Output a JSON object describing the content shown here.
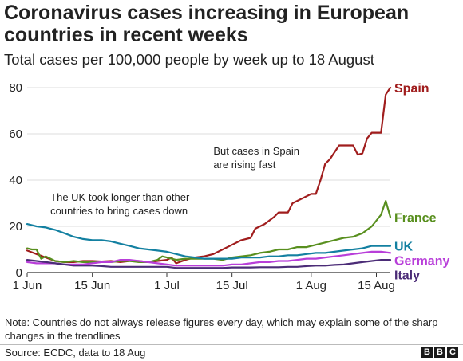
{
  "title": "Coronavirus cases increasing in European countries in recent weeks",
  "subtitle": "Total cases per 100,000 people by week up to 18 August",
  "note": "Note: Countries do not always release figures every day, which may explain some of the sharp changes in the trendlines",
  "source": "Source: ECDC, data to 18 Aug",
  "logo": [
    "B",
    "B",
    "C"
  ],
  "chart_data": {
    "type": "line",
    "x_start": "2020-06-01",
    "xlim": [
      "2020-06-01",
      "2020-08-18"
    ],
    "ylim": [
      0,
      80
    ],
    "grid": true,
    "yticks": [
      0,
      20,
      40,
      60,
      80
    ],
    "xticks": [
      {
        "date": "2020-06-01",
        "label": "1 Jun"
      },
      {
        "date": "2020-06-15",
        "label": "15 Jun"
      },
      {
        "date": "2020-07-01",
        "label": "1 Jul"
      },
      {
        "date": "2020-07-15",
        "label": "15 Jul"
      },
      {
        "date": "2020-08-01",
        "label": "1 Aug"
      },
      {
        "date": "2020-08-15",
        "label": "15 Aug"
      }
    ],
    "series": [
      {
        "name": "Spain",
        "color": "#a01d1d",
        "points": [
          [
            "2020-06-01",
            9.5
          ],
          [
            "2020-06-03",
            8.0
          ],
          [
            "2020-06-05",
            6.5
          ],
          [
            "2020-06-07",
            5.0
          ],
          [
            "2020-06-09",
            4.5
          ],
          [
            "2020-06-11",
            4.5
          ],
          [
            "2020-06-13",
            5.0
          ],
          [
            "2020-06-15",
            5.0
          ],
          [
            "2020-06-17",
            4.8
          ],
          [
            "2020-06-19",
            5.0
          ],
          [
            "2020-06-21",
            4.5
          ],
          [
            "2020-06-23",
            5.0
          ],
          [
            "2020-06-25",
            5.0
          ],
          [
            "2020-06-27",
            4.5
          ],
          [
            "2020-06-29",
            5.0
          ],
          [
            "2020-07-01",
            5.5
          ],
          [
            "2020-07-02",
            6.5
          ],
          [
            "2020-07-03",
            4.0
          ],
          [
            "2020-07-05",
            5.5
          ],
          [
            "2020-07-07",
            6.5
          ],
          [
            "2020-07-09",
            7.0
          ],
          [
            "2020-07-11",
            8.0
          ],
          [
            "2020-07-13",
            10.0
          ],
          [
            "2020-07-15",
            12.0
          ],
          [
            "2020-07-17",
            14.0
          ],
          [
            "2020-07-19",
            15.0
          ],
          [
            "2020-07-20",
            19.0
          ],
          [
            "2020-07-22",
            21.0
          ],
          [
            "2020-07-24",
            24.0
          ],
          [
            "2020-07-25",
            26.0
          ],
          [
            "2020-07-27",
            26.0
          ],
          [
            "2020-07-28",
            30.0
          ],
          [
            "2020-07-29",
            31.0
          ],
          [
            "2020-07-31",
            33.0
          ],
          [
            "2020-08-01",
            34.0
          ],
          [
            "2020-08-02",
            34.0
          ],
          [
            "2020-08-03",
            40.0
          ],
          [
            "2020-08-04",
            47.0
          ],
          [
            "2020-08-05",
            49.0
          ],
          [
            "2020-08-07",
            55.0
          ],
          [
            "2020-08-09",
            55.0
          ],
          [
            "2020-08-10",
            55.0
          ],
          [
            "2020-08-11",
            51.0
          ],
          [
            "2020-08-12",
            51.5
          ],
          [
            "2020-08-13",
            58.0
          ],
          [
            "2020-08-14",
            60.5
          ],
          [
            "2020-08-15",
            60.5
          ],
          [
            "2020-08-16",
            60.5
          ],
          [
            "2020-08-17",
            77.0
          ],
          [
            "2020-08-18",
            80.0
          ]
        ]
      },
      {
        "name": "France",
        "color": "#588f1e",
        "points": [
          [
            "2020-06-01",
            10.5
          ],
          [
            "2020-06-02",
            10.0
          ],
          [
            "2020-06-03",
            10.0
          ],
          [
            "2020-06-04",
            6.0
          ],
          [
            "2020-06-05",
            7.0
          ],
          [
            "2020-06-07",
            5.0
          ],
          [
            "2020-06-09",
            4.5
          ],
          [
            "2020-06-11",
            5.0
          ],
          [
            "2020-06-13",
            4.5
          ],
          [
            "2020-06-15",
            4.5
          ],
          [
            "2020-06-17",
            4.5
          ],
          [
            "2020-06-19",
            4.5
          ],
          [
            "2020-06-21",
            5.0
          ],
          [
            "2020-06-23",
            5.0
          ],
          [
            "2020-06-25",
            4.5
          ],
          [
            "2020-06-27",
            4.5
          ],
          [
            "2020-06-29",
            5.5
          ],
          [
            "2020-06-30",
            7.0
          ],
          [
            "2020-07-01",
            6.5
          ],
          [
            "2020-07-03",
            5.5
          ],
          [
            "2020-07-05",
            6.0
          ],
          [
            "2020-07-07",
            6.0
          ],
          [
            "2020-07-09",
            6.0
          ],
          [
            "2020-07-11",
            6.0
          ],
          [
            "2020-07-13",
            5.5
          ],
          [
            "2020-07-15",
            6.5
          ],
          [
            "2020-07-17",
            7.0
          ],
          [
            "2020-07-19",
            7.5
          ],
          [
            "2020-07-21",
            8.5
          ],
          [
            "2020-07-23",
            9.0
          ],
          [
            "2020-07-25",
            10.0
          ],
          [
            "2020-07-27",
            10.0
          ],
          [
            "2020-07-29",
            11.0
          ],
          [
            "2020-07-31",
            11.0
          ],
          [
            "2020-08-02",
            12.0
          ],
          [
            "2020-08-04",
            13.0
          ],
          [
            "2020-08-06",
            14.0
          ],
          [
            "2020-08-08",
            15.0
          ],
          [
            "2020-08-10",
            15.5
          ],
          [
            "2020-08-12",
            17.0
          ],
          [
            "2020-08-14",
            20.0
          ],
          [
            "2020-08-16",
            25.0
          ],
          [
            "2020-08-17",
            31.0
          ],
          [
            "2020-08-18",
            24.0
          ]
        ]
      },
      {
        "name": "UK",
        "color": "#1380a1",
        "points": [
          [
            "2020-06-01",
            21.0
          ],
          [
            "2020-06-03",
            20.0
          ],
          [
            "2020-06-05",
            19.5
          ],
          [
            "2020-06-07",
            18.5
          ],
          [
            "2020-06-09",
            17.0
          ],
          [
            "2020-06-11",
            15.5
          ],
          [
            "2020-06-13",
            14.5
          ],
          [
            "2020-06-15",
            14.0
          ],
          [
            "2020-06-17",
            14.0
          ],
          [
            "2020-06-19",
            13.5
          ],
          [
            "2020-06-21",
            12.5
          ],
          [
            "2020-06-23",
            11.5
          ],
          [
            "2020-06-25",
            10.5
          ],
          [
            "2020-06-27",
            10.0
          ],
          [
            "2020-06-29",
            9.5
          ],
          [
            "2020-07-01",
            9.0
          ],
          [
            "2020-07-03",
            8.0
          ],
          [
            "2020-07-05",
            7.0
          ],
          [
            "2020-07-07",
            6.5
          ],
          [
            "2020-07-09",
            6.0
          ],
          [
            "2020-07-11",
            6.0
          ],
          [
            "2020-07-13",
            6.0
          ],
          [
            "2020-07-15",
            6.0
          ],
          [
            "2020-07-17",
            6.5
          ],
          [
            "2020-07-19",
            6.5
          ],
          [
            "2020-07-21",
            6.5
          ],
          [
            "2020-07-23",
            7.0
          ],
          [
            "2020-07-25",
            7.0
          ],
          [
            "2020-07-27",
            7.5
          ],
          [
            "2020-07-29",
            7.5
          ],
          [
            "2020-07-31",
            8.0
          ],
          [
            "2020-08-02",
            8.5
          ],
          [
            "2020-08-04",
            8.5
          ],
          [
            "2020-08-06",
            9.0
          ],
          [
            "2020-08-08",
            9.5
          ],
          [
            "2020-08-10",
            10.0
          ],
          [
            "2020-08-12",
            10.5
          ],
          [
            "2020-08-14",
            11.5
          ],
          [
            "2020-08-16",
            11.5
          ],
          [
            "2020-08-18",
            11.5
          ]
        ]
      },
      {
        "name": "Germany",
        "color": "#b83ed9",
        "points": [
          [
            "2020-06-01",
            4.5
          ],
          [
            "2020-06-03",
            4.0
          ],
          [
            "2020-06-05",
            4.0
          ],
          [
            "2020-06-07",
            4.0
          ],
          [
            "2020-06-09",
            3.5
          ],
          [
            "2020-06-11",
            3.5
          ],
          [
            "2020-06-13",
            3.5
          ],
          [
            "2020-06-15",
            4.0
          ],
          [
            "2020-06-17",
            4.5
          ],
          [
            "2020-06-19",
            4.5
          ],
          [
            "2020-06-21",
            5.5
          ],
          [
            "2020-06-23",
            5.5
          ],
          [
            "2020-06-25",
            5.0
          ],
          [
            "2020-06-27",
            4.5
          ],
          [
            "2020-06-29",
            4.0
          ],
          [
            "2020-07-01",
            3.5
          ],
          [
            "2020-07-03",
            3.0
          ],
          [
            "2020-07-05",
            3.0
          ],
          [
            "2020-07-07",
            3.0
          ],
          [
            "2020-07-09",
            3.0
          ],
          [
            "2020-07-11",
            3.0
          ],
          [
            "2020-07-13",
            3.0
          ],
          [
            "2020-07-15",
            3.5
          ],
          [
            "2020-07-17",
            3.5
          ],
          [
            "2020-07-19",
            4.0
          ],
          [
            "2020-07-21",
            4.5
          ],
          [
            "2020-07-23",
            4.5
          ],
          [
            "2020-07-25",
            5.0
          ],
          [
            "2020-07-27",
            5.0
          ],
          [
            "2020-07-29",
            5.5
          ],
          [
            "2020-07-31",
            6.0
          ],
          [
            "2020-08-02",
            6.0
          ],
          [
            "2020-08-04",
            6.5
          ],
          [
            "2020-08-06",
            7.0
          ],
          [
            "2020-08-08",
            7.5
          ],
          [
            "2020-08-10",
            8.0
          ],
          [
            "2020-08-12",
            8.5
          ],
          [
            "2020-08-14",
            9.0
          ],
          [
            "2020-08-16",
            9.0
          ],
          [
            "2020-08-18",
            8.5
          ]
        ]
      },
      {
        "name": "Italy",
        "color": "#4b2c77",
        "points": [
          [
            "2020-06-01",
            5.5
          ],
          [
            "2020-06-03",
            5.0
          ],
          [
            "2020-06-05",
            4.5
          ],
          [
            "2020-06-07",
            4.0
          ],
          [
            "2020-06-09",
            3.5
          ],
          [
            "2020-06-11",
            3.0
          ],
          [
            "2020-06-13",
            3.0
          ],
          [
            "2020-06-15",
            3.0
          ],
          [
            "2020-06-17",
            2.8
          ],
          [
            "2020-06-19",
            2.5
          ],
          [
            "2020-06-21",
            2.5
          ],
          [
            "2020-06-23",
            2.5
          ],
          [
            "2020-06-25",
            2.5
          ],
          [
            "2020-06-27",
            2.5
          ],
          [
            "2020-06-29",
            2.5
          ],
          [
            "2020-07-01",
            2.5
          ],
          [
            "2020-07-03",
            2.0
          ],
          [
            "2020-07-05",
            2.0
          ],
          [
            "2020-07-07",
            2.0
          ],
          [
            "2020-07-09",
            2.0
          ],
          [
            "2020-07-11",
            2.0
          ],
          [
            "2020-07-13",
            2.0
          ],
          [
            "2020-07-15",
            2.2
          ],
          [
            "2020-07-17",
            2.2
          ],
          [
            "2020-07-19",
            2.2
          ],
          [
            "2020-07-21",
            2.3
          ],
          [
            "2020-07-23",
            2.3
          ],
          [
            "2020-07-25",
            2.3
          ],
          [
            "2020-07-27",
            2.5
          ],
          [
            "2020-07-29",
            2.5
          ],
          [
            "2020-07-31",
            2.8
          ],
          [
            "2020-08-02",
            3.0
          ],
          [
            "2020-08-04",
            3.0
          ],
          [
            "2020-08-06",
            3.3
          ],
          [
            "2020-08-08",
            3.5
          ],
          [
            "2020-08-10",
            4.0
          ],
          [
            "2020-08-12",
            4.5
          ],
          [
            "2020-08-14",
            5.0
          ],
          [
            "2020-08-16",
            5.5
          ],
          [
            "2020-08-18",
            5.5
          ]
        ]
      }
    ],
    "annotations": [
      {
        "lines": [
          "But cases in Spain",
          "are rising fast"
        ],
        "date": "2020-07-11",
        "value": 51
      },
      {
        "lines": [
          "The UK took longer than other",
          "countries to bring cases down"
        ],
        "date": "2020-06-06",
        "value": 31
      }
    ]
  }
}
